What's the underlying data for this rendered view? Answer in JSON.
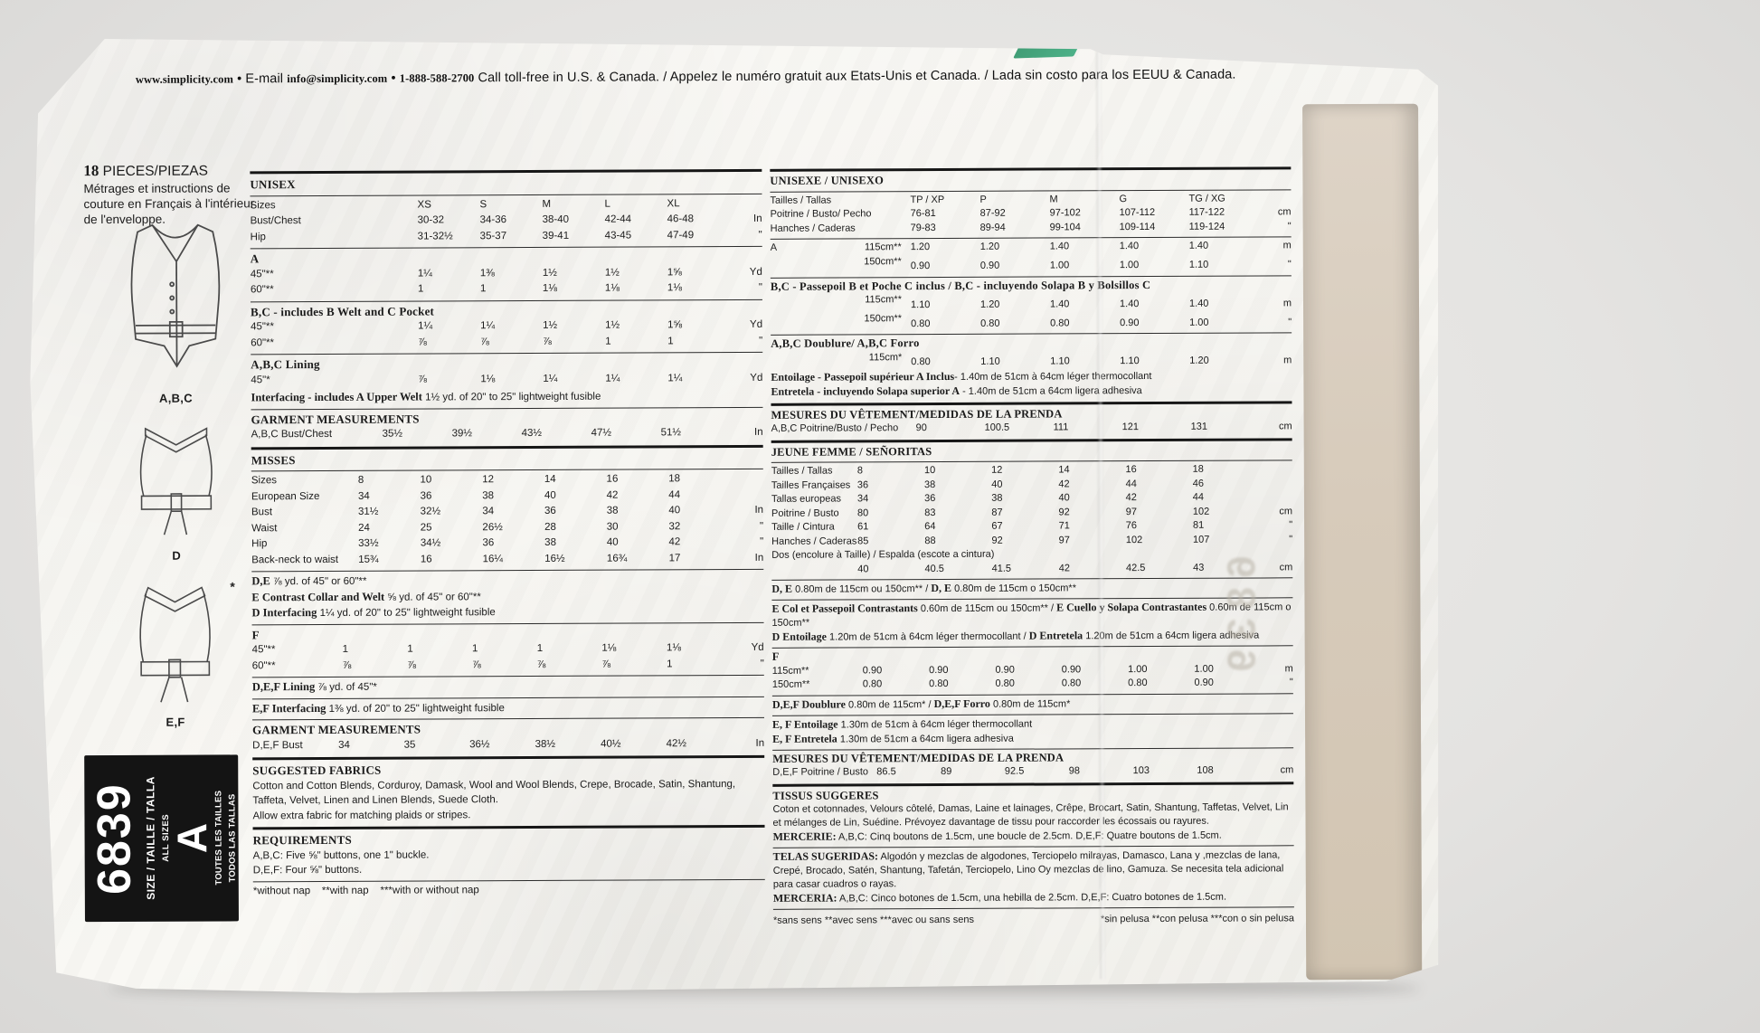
{
  "header": {
    "segments": [
      {
        "t": "www.simplicity.com",
        "b": true
      },
      {
        "t": " • E-mail ",
        "b": false
      },
      {
        "t": "info@simplicity.com",
        "b": true
      },
      {
        "t": " • ",
        "b": false
      },
      {
        "t": "1-888-588-2700",
        "b": true
      },
      {
        "t": " Call toll-free in U.S. & Canada. / Appelez le numéro gratuit aux Etats-Unis et Canada. / Lada sin costo para los EEUU & Canada.",
        "b": false
      }
    ]
  },
  "sidebar": {
    "pieces_line": [
      {
        "t": "18",
        "b": true
      },
      {
        "t": " PIECES/PIEZAS",
        "b": false
      }
    ],
    "pieces_note": "Métrages et instructions de couture en Français à l'intérieur de l'enveloppe.",
    "sketch_labels": {
      "abc": "A,B,C",
      "d": "D",
      "ef": "E,F"
    },
    "sketch_star": "*",
    "box": {
      "number": "6839",
      "size_line": "SIZE / TAILLE / TALLA",
      "all_sizes": "ALL SIZES",
      "letter": "A",
      "toutes": "TOUTES LES TAILLES",
      "todos": "TODOS LAS TALLAS"
    },
    "flap_ghost": "6839"
  },
  "left_sections": [
    {
      "rule": "thick",
      "title": "UNISEX",
      "title_rule": true,
      "lblw": 185,
      "rows": [
        {
          "label": "Sizes",
          "values": [
            "XS",
            "S",
            "M",
            "L",
            "XL"
          ],
          "unit": ""
        },
        {
          "label": "Bust/Chest",
          "values": [
            "30-32",
            "34-36",
            "38-40",
            "42-44",
            "46-48"
          ],
          "unit": "In"
        },
        {
          "label": "Hip",
          "values": [
            "31-32½",
            "35-37",
            "39-41",
            "43-45",
            "47-49"
          ],
          "unit": "\""
        }
      ]
    },
    {
      "rule": "thin",
      "title": "A",
      "lblw": 185,
      "rows": [
        {
          "label": "45\"**",
          "values": [
            "1¼",
            "1⅜",
            "1½",
            "1½",
            "1⅝"
          ],
          "unit": "Yd"
        },
        {
          "label": "60\"**",
          "values": [
            "1",
            "1",
            "1⅛",
            "1⅛",
            "1⅛"
          ],
          "unit": "\""
        }
      ]
    },
    {
      "rule": "thin",
      "title": "B,C - includes B Welt and C Pocket",
      "lblw": 185,
      "rows": [
        {
          "label": "45\"**",
          "values": [
            "1¼",
            "1¼",
            "1½",
            "1½",
            "1⅝"
          ],
          "unit": "Yd"
        },
        {
          "label": "60\"**",
          "values": [
            "⅞",
            "⅞",
            "⅞",
            "1",
            "1"
          ],
          "unit": "\""
        }
      ]
    },
    {
      "rule": "thin",
      "title": "A,B,C Lining",
      "lblw": 185,
      "rows": [
        {
          "label": "45\"*",
          "values": [
            "⅞",
            "1⅛",
            "1¼",
            "1¼",
            "1¼"
          ],
          "unit": "Yd"
        }
      ]
    },
    {
      "rule": "none",
      "notes": [
        [
          {
            "t": "Interfacing - includes A Upper Welt",
            "b": true
          },
          {
            "t": " 1½ yd. of 20\" to 25\" lightweight fusible",
            "b": false
          }
        ]
      ]
    },
    {
      "rule": "thin",
      "title": "GARMENT MEASUREMENTS",
      "lblw": 145,
      "rows": [
        {
          "label": "A,B,C Bust/Chest",
          "values": [
            "35½",
            "39½",
            "43½",
            "47½",
            "51½"
          ],
          "unit": "In"
        }
      ]
    },
    {
      "rule": "thick",
      "title": "MISSES",
      "title_rule": true,
      "lblw": 118,
      "rows": [
        {
          "label": "Sizes",
          "values": [
            "8",
            "10",
            "12",
            "14",
            "16",
            "18"
          ],
          "unit": ""
        },
        {
          "label": "European Size",
          "values": [
            "34",
            "36",
            "38",
            "40",
            "42",
            "44"
          ],
          "unit": ""
        },
        {
          "label": "Bust",
          "values": [
            "31½",
            "32½",
            "34",
            "36",
            "38",
            "40"
          ],
          "unit": "In"
        },
        {
          "label": "Waist",
          "values": [
            "24",
            "25",
            "26½",
            "28",
            "30",
            "32"
          ],
          "unit": "\""
        },
        {
          "label": "Hip",
          "values": [
            "33½",
            "34½",
            "36",
            "38",
            "40",
            "42"
          ],
          "unit": "\""
        },
        {
          "label": "Back-neck to waist",
          "values": [
            "15¾",
            "16",
            "16¼",
            "16½",
            "16¾",
            "17"
          ],
          "unit": "In"
        }
      ]
    },
    {
      "rule": "thin",
      "notes": [
        [
          {
            "t": "D,E",
            "b": true
          },
          {
            "t": " ⅞ yd. of 45\" or 60\"**",
            "b": false
          }
        ],
        [
          {
            "t": "E Contrast Collar and Welt",
            "b": true
          },
          {
            "t": " ⅝ yd. of 45\" or 60\"**",
            "b": false
          }
        ],
        [
          {
            "t": "D Interfacing",
            "b": true
          },
          {
            "t": " 1¼ yd. of 20\" to 25\" lightweight fusible",
            "b": false
          }
        ]
      ]
    },
    {
      "rule": "thin",
      "title": "F",
      "lblw": 100,
      "rows": [
        {
          "label": "45\"**",
          "values": [
            "1",
            "1",
            "1",
            "1",
            "1⅛",
            "1⅛"
          ],
          "unit": "Yd"
        },
        {
          "label": "60\"**",
          "values": [
            "⅞",
            "⅞",
            "⅞",
            "⅞",
            "⅞",
            "1"
          ],
          "unit": "\""
        }
      ]
    },
    {
      "rule": "thin",
      "notes": [
        [
          {
            "t": "D,E,F Lining",
            "b": true
          },
          {
            "t": " ⅞ yd. of 45\"*",
            "b": false
          }
        ]
      ]
    },
    {
      "rule": "thin",
      "notes": [
        [
          {
            "t": "E,F Interfacing",
            "b": true
          },
          {
            "t": " 1⅜ yd. of 20\" to 25\" lightweight fusible",
            "b": false
          }
        ]
      ]
    },
    {
      "rule": "thin",
      "title": "GARMENT MEASUREMENTS",
      "lblw": 95,
      "rows": [
        {
          "label": "D,E,F Bust",
          "values": [
            "34",
            "35",
            "36½",
            "38½",
            "40½",
            "42½"
          ],
          "unit": "In"
        }
      ]
    },
    {
      "rule": "thick",
      "title": "SUGGESTED FABRICS",
      "notes": [
        [
          {
            "t": "Cotton and Cotton Blends, Corduroy, Damask, Wool and Wool Blends, Crepe, Brocade, Satin, Shantung, Taffeta, Velvet, Linen and Linen Blends, Suede Cloth.",
            "b": false
          }
        ],
        [
          {
            "t": "Allow extra fabric for matching plaids or stripes.",
            "b": false
          }
        ]
      ]
    },
    {
      "rule": "thick",
      "title": "REQUIREMENTS",
      "notes": [
        [
          {
            "t": "A,B,C: Five ⅝\" buttons, one 1\" buckle.",
            "b": false
          }
        ],
        [
          {
            "t": "D,E,F: Four ⅝\" buttons.",
            "b": false
          }
        ]
      ]
    },
    {
      "rule": "thin",
      "notes": [
        [
          {
            "t": "*without nap    **with nap    ***with or without nap",
            "b": false
          }
        ]
      ]
    }
  ],
  "right_sections": [
    {
      "rule": "thick",
      "title": "UNISEXE / UNISEXO",
      "title_rule": true,
      "lblw": 155,
      "rows": [
        {
          "label": "Tailles / Tallas",
          "values": [
            "TP / XP",
            "P",
            "M",
            "G",
            "TG / XG"
          ],
          "unit": ""
        },
        {
          "label": "Poitrine / Busto/ Pecho",
          "values": [
            "76-81",
            "87-92",
            "97-102",
            "107-112",
            "117-122"
          ],
          "unit": "cm"
        },
        {
          "label": "Hanches / Caderas",
          "values": [
            "79-83",
            "89-94",
            "99-104",
            "109-114",
            "119-124"
          ],
          "unit": "\""
        }
      ]
    },
    {
      "rule": "thin",
      "lblw": 155,
      "rows": [
        {
          "label": "A",
          "sub": "115cm**",
          "values": [
            "1.20",
            "1.20",
            "1.40",
            "1.40",
            "1.40"
          ],
          "unit": "m"
        },
        {
          "label": "",
          "sub": "150cm**",
          "values": [
            "0.90",
            "0.90",
            "1.00",
            "1.00",
            "1.10"
          ],
          "unit": "\""
        }
      ]
    },
    {
      "rule": "thin",
      "title": "B,C - Passepoil B et Poche C inclus / B,C - incluyendo Solapa B y Bolsillos C",
      "lblw": 155,
      "rows": [
        {
          "label": "",
          "sub": "115cm**",
          "values": [
            "1.10",
            "1.20",
            "1.40",
            "1.40",
            "1.40"
          ],
          "unit": "m"
        },
        {
          "label": "",
          "sub": "150cm**",
          "values": [
            "0.80",
            "0.80",
            "0.80",
            "0.90",
            "1.00"
          ],
          "unit": "\""
        }
      ]
    },
    {
      "rule": "thin",
      "title": "A,B,C Doublure/ A,B,C Forro",
      "lblw": 155,
      "rows": [
        {
          "label": "",
          "sub": "115cm*",
          "values": [
            "0.80",
            "1.10",
            "1.10",
            "1.10",
            "1.20"
          ],
          "unit": "m"
        }
      ],
      "notes": [
        [
          {
            "t": "Entoilage - Passepoil supérieur A Inclus",
            "b": true
          },
          {
            "t": "- 1.40m de 51cm à 64cm léger thermocollant",
            "b": false
          }
        ],
        [
          {
            "t": "Entretela - incluyendo Solapa superior A",
            "b": true
          },
          {
            "t": " - 1.40m de 51cm a 64cm ligera adhesiva",
            "b": false
          }
        ]
      ]
    },
    {
      "rule": "thick",
      "title": "MESURES DU VÊTEMENT/MEDIDAS DE LA PRENDA",
      "lblw": 160,
      "rows": [
        {
          "label": "A,B,C Poitrine/Busto / Pecho",
          "values": [
            "90",
            "100.5",
            "111",
            "121",
            "131"
          ],
          "unit": "cm"
        }
      ]
    },
    {
      "rule": "thick",
      "title": "JEUNE FEMME / SEÑORITAS",
      "title_rule": true,
      "lblw": 95,
      "rows": [
        {
          "label": "Tailles / Tallas",
          "values": [
            "8",
            "10",
            "12",
            "14",
            "16",
            "18"
          ],
          "unit": ""
        },
        {
          "label": "Tailles Françaises",
          "values": [
            "36",
            "38",
            "40",
            "42",
            "44",
            "46"
          ],
          "unit": ""
        },
        {
          "label": "Tallas europeas",
          "values": [
            "34",
            "36",
            "38",
            "40",
            "42",
            "44"
          ],
          "unit": ""
        },
        {
          "label": "Poitrine / Busto",
          "values": [
            "80",
            "83",
            "87",
            "92",
            "97",
            "102"
          ],
          "unit": "cm"
        },
        {
          "label": "Taille / Cintura",
          "values": [
            "61",
            "64",
            "67",
            "71",
            "76",
            "81"
          ],
          "unit": "\""
        },
        {
          "label": "Hanches / Caderas",
          "values": [
            "85",
            "88",
            "92",
            "97",
            "102",
            "107"
          ],
          "unit": "\""
        },
        {
          "label": "Dos (encolure à Taille) / Espalda (escote a cintura)",
          "values": [],
          "unit": ""
        },
        {
          "label": "",
          "values": [
            "40",
            "40.5",
            "41.5",
            "42",
            "42.5",
            "43"
          ],
          "unit": "cm"
        }
      ]
    },
    {
      "rule": "thin",
      "notes": [
        [
          {
            "t": "D, E",
            "b": true
          },
          {
            "t": " 0.80m de 115cm ou 150cm** / ",
            "b": false
          },
          {
            "t": "D, E",
            "b": true
          },
          {
            "t": " 0.80m de 115cm o 150cm**",
            "b": false
          }
        ]
      ]
    },
    {
      "rule": "thin",
      "notes": [
        [
          {
            "t": "E Col et Passepoil Contrastants",
            "b": true
          },
          {
            "t": " 0.60m de 115cm ou 150cm** / ",
            "b": false
          },
          {
            "t": "E Cuello y Solapa Contrastantes",
            "b": true
          },
          {
            "t": " 0.60m de 115cm o 150cm**",
            "b": false
          }
        ],
        [
          {
            "t": "D Entoilage",
            "b": true
          },
          {
            "t": " 1.20m de 51cm à 64cm léger thermocollant / ",
            "b": false
          },
          {
            "t": "D Entretela",
            "b": true
          },
          {
            "t": " 1.20m de 51cm a 64cm ligera adhesiva",
            "b": false
          }
        ]
      ]
    },
    {
      "rule": "thin",
      "title": "F",
      "lblw": 100,
      "rows": [
        {
          "label": "115cm**",
          "values": [
            "0.90",
            "0.90",
            "0.90",
            "0.90",
            "1.00",
            "1.00"
          ],
          "unit": "m"
        },
        {
          "label": "150cm**",
          "values": [
            "0.80",
            "0.80",
            "0.80",
            "0.80",
            "0.80",
            "0.90"
          ],
          "unit": "\""
        }
      ]
    },
    {
      "rule": "thin",
      "notes": [
        [
          {
            "t": "D,E,F Doublure",
            "b": true
          },
          {
            "t": " 0.80m de 115cm* / ",
            "b": false
          },
          {
            "t": "D,E,F Forro",
            "b": true
          },
          {
            "t": " 0.80m de 115cm*",
            "b": false
          }
        ]
      ]
    },
    {
      "rule": "thin",
      "notes": [
        [
          {
            "t": "E, F Entoilage",
            "b": true
          },
          {
            "t": " 1.30m de 51cm à 64cm léger thermocollant",
            "b": false
          }
        ],
        [
          {
            "t": "E, F Entretela",
            "b": true
          },
          {
            "t": " 1.30m de 51cm a 64cm ligera adhesiva",
            "b": false
          }
        ]
      ]
    },
    {
      "rule": "thin",
      "title": "MESURES DU VÊTEMENT/MEDIDAS DE LA PRENDA",
      "lblw": 115,
      "rows": [
        {
          "label": "D,E,F Poitrine / Busto",
          "values": [
            "86.5",
            "89",
            "92.5",
            "98",
            "103",
            "108"
          ],
          "unit": "cm"
        }
      ]
    },
    {
      "rule": "thick",
      "title": "TISSUS SUGGERES",
      "notes": [
        [
          {
            "t": "Coton et cotonnades, Velours côtelé, Damas, Laine et lainages, Crêpe, Brocart, Satin, Shantung, Taffetas, Velvet, Lin et mélanges de Lin, Suédine. Prévoyez davantage de tissu pour raccorder les écossais ou rayures.",
            "b": false
          }
        ],
        [
          {
            "t": "MERCERIE:",
            "b": true
          },
          {
            "t": " A,B,C: Cinq boutons de 1.5cm, une boucle de 2.5cm. D,E,F: Quatre boutons de 1.5cm.",
            "b": false
          }
        ]
      ]
    },
    {
      "rule": "thin",
      "notes": [
        [
          {
            "t": "TELAS SUGERIDAS:",
            "b": true
          },
          {
            "t": " Algodón y mezclas de algodones, Terciopelo milrayas, Damasco, Lana y ,mezclas de lana, Crepé, Brocado, Satén, Shantung, Tafetán, Terciopelo, Lino Oy mezclas de lino, Gamuza. Se necesita tela adicional para casar cuadros o rayas.",
            "b": false
          }
        ],
        [
          {
            "t": "MERCERIA:",
            "b": true
          },
          {
            "t": " A,B,C: Cinco botones de 1.5cm, una hebilla de 2.5cm. D,E,F: Cuatro botones de 1.5cm.",
            "b": false
          }
        ]
      ]
    },
    {
      "rule": "thin",
      "footnote_pair": {
        "left": "*sans sens  **avec sens  ***avec ou sans sens",
        "right": "*sin pelusa  **con pelusa  ***con o sin pelusa"
      }
    }
  ],
  "colors": {
    "paper": "#f7f6f2",
    "ink": "#1b1b1b",
    "flap_tan": "#d7cbbb",
    "green_mark": "#35a275",
    "box_black": "#141414"
  }
}
